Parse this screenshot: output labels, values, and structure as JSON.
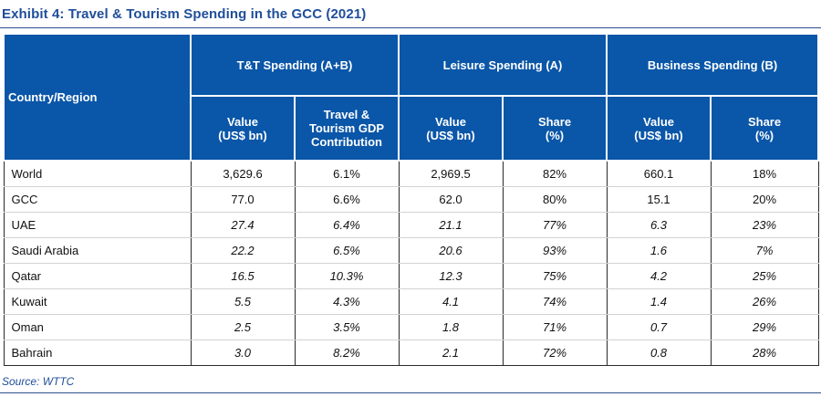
{
  "title": "Exhibit 4:  Travel & Tourism Spending in the GCC (2021)",
  "source": "Source:  WTTC",
  "colors": {
    "header_bg": "#0a56a8",
    "title": "#1f4e9a"
  },
  "headers": {
    "country": "Country/Region",
    "groups": [
      "T&T Spending (A+B)",
      "Leisure Spending (A)",
      "Business Spending (B)"
    ],
    "sub": [
      [
        "Value",
        "(US$ bn)"
      ],
      [
        "Travel &",
        "Tourism GDP",
        "Contribution"
      ],
      [
        "Value",
        "(US$ bn)"
      ],
      [
        "Share",
        "(%)"
      ],
      [
        "Value",
        "(US$ bn)"
      ],
      [
        "Share",
        "(%)"
      ]
    ]
  },
  "rows": [
    {
      "country": "World",
      "italic": false,
      "cells": [
        "3,629.6",
        "6.1%",
        "2,969.5",
        "82%",
        "660.1",
        "18%"
      ]
    },
    {
      "country": "GCC",
      "italic": false,
      "cells": [
        "77.0",
        "6.6%",
        "62.0",
        "80%",
        "15.1",
        "20%"
      ]
    },
    {
      "country": "UAE",
      "italic": true,
      "cells": [
        "27.4",
        "6.4%",
        "21.1",
        "77%",
        "6.3",
        "23%"
      ]
    },
    {
      "country": "Saudi Arabia",
      "italic": true,
      "cells": [
        "22.2",
        "6.5%",
        "20.6",
        "93%",
        "1.6",
        "7%"
      ]
    },
    {
      "country": "Qatar",
      "italic": true,
      "cells": [
        "16.5",
        "10.3%",
        "12.3",
        "75%",
        "4.2",
        "25%"
      ]
    },
    {
      "country": "Kuwait",
      "italic": true,
      "cells": [
        "5.5",
        "4.3%",
        "4.1",
        "74%",
        "1.4",
        "26%"
      ]
    },
    {
      "country": "Oman",
      "italic": true,
      "cells": [
        "2.5",
        "3.5%",
        "1.8",
        "71%",
        "0.7",
        "29%"
      ]
    },
    {
      "country": "Bahrain",
      "italic": true,
      "cells": [
        "3.0",
        "8.2%",
        "2.1",
        "72%",
        "0.8",
        "28%"
      ]
    }
  ]
}
